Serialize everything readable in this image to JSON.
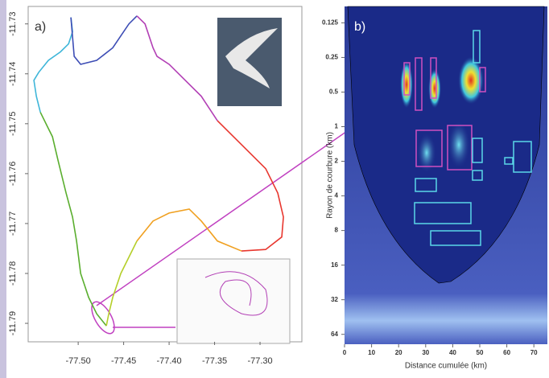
{
  "chart_data": [
    {
      "type": "line",
      "annotation": "a)",
      "xlim": [
        -77.555,
        -77.254
      ],
      "ylim": [
        -11.7937,
        -11.7265
      ],
      "xticks": [
        {
          "value": -77.5,
          "label": "-77.50"
        },
        -77.45,
        {
          "value": -77.4,
          "label": "-77.40"
        },
        -77.35,
        {
          "value": -77.3,
          "label": "-77.30"
        }
      ],
      "yticks": [
        -11.73,
        -11.74,
        -11.75,
        -11.76,
        -11.77,
        -11.78,
        -11.79
      ],
      "series": [
        {
          "color": "#5aae2e",
          "x": [
            -77.469,
            -77.4796,
            -77.4885,
            -77.4973,
            -77.5018,
            -77.5062,
            -77.5133,
            -77.5221,
            -77.5283,
            -77.5327,
            -77.5416
          ],
          "y": [
            -11.7905,
            -11.7881,
            -11.7848,
            -11.78,
            -11.7735,
            -11.7687,
            -11.7639,
            -11.7574,
            -11.7526,
            -11.751,
            -11.7477
          ]
        },
        {
          "color": "#3fb6d9",
          "x": [
            -77.5416,
            -77.546,
            -77.5487,
            -77.5434,
            -77.5327,
            -77.5195,
            -77.5106,
            -77.5062,
            -77.508
          ],
          "y": [
            -11.7477,
            -11.7445,
            -11.7413,
            -11.7397,
            -11.7373,
            -11.7356,
            -11.734,
            -11.7316,
            -11.7287
          ]
        },
        {
          "color": "#3d4db5",
          "x": [
            -77.508,
            -77.5044,
            -77.4973,
            -77.4796,
            -77.462,
            -77.4531,
            -77.4442,
            -77.4354
          ],
          "y": [
            -11.7287,
            -11.7365,
            -11.7381,
            -11.7373,
            -11.7348,
            -11.7324,
            -11.73,
            -11.7284
          ]
        },
        {
          "color": "#b23fb5",
          "x": [
            -77.4354,
            -77.4265,
            -77.4177,
            -77.4133,
            -77.4,
            -77.3823,
            -77.3646,
            -77.3469
          ],
          "y": [
            -11.7284,
            -11.73,
            -11.7348,
            -11.7365,
            -11.7381,
            -11.7413,
            -11.7445,
            -11.7494
          ]
        },
        {
          "color": "#e8372f",
          "x": [
            -77.3469,
            -77.3292,
            -77.3115,
            -77.2938,
            -77.2805,
            -77.2743,
            -77.2761,
            -77.2938,
            -77.3204
          ],
          "y": [
            -11.7494,
            -11.7526,
            -11.7558,
            -11.759,
            -11.7639,
            -11.7687,
            -11.7727,
            -11.7752,
            -11.7755
          ]
        },
        {
          "color": "#f0a020",
          "x": [
            -77.3204,
            -77.3469,
            -77.3646,
            -77.3779,
            -77.4,
            -77.4177,
            -77.4354
          ],
          "y": [
            -11.7755,
            -11.7735,
            -11.7695,
            -11.7671,
            -11.7679,
            -11.7695,
            -11.7735
          ]
        },
        {
          "color": "#b5cf2a",
          "x": [
            -77.4354,
            -77.4531,
            -77.462,
            -77.4664,
            -77.469
          ],
          "y": [
            -11.7735,
            -11.78,
            -11.7848,
            -11.7881,
            -11.7905
          ]
        }
      ]
    },
    {
      "type": "heatmap",
      "annotation": "b)",
      "xlabel": "Distance cumulée (km)",
      "ylabel": "Rayon de courbure (km)",
      "xlim": [
        0,
        75
      ],
      "xticks": [
        0,
        10,
        20,
        30,
        40,
        50,
        60,
        70
      ],
      "ylim": [
        0.09,
        78
      ],
      "log_y": true,
      "y_inverted": true,
      "yticks": [
        0.125,
        0.25,
        0.5,
        1,
        2,
        4,
        8,
        16,
        32,
        64
      ]
    }
  ]
}
